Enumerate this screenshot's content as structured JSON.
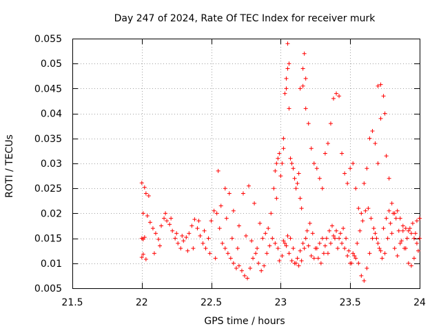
{
  "chart_data": {
    "type": "scatter",
    "title": "Day 247 of 2024, Rate Of TEC Index for receiver murk",
    "xlabel": "GPS time / hours",
    "ylabel": "ROTI / TECUs",
    "xlim": [
      21.5,
      24
    ],
    "ylim": [
      0.005,
      0.055
    ],
    "xticks": [
      21.5,
      22,
      22.5,
      23,
      23.5,
      24
    ],
    "xtick_labels": [
      "21.5",
      "22",
      "22.5",
      "23",
      "23.5",
      "24"
    ],
    "yticks": [
      0.005,
      0.01,
      0.015,
      0.02,
      0.025,
      0.03,
      0.035,
      0.04,
      0.045,
      0.05,
      0.055
    ],
    "ytick_labels": [
      "0.005",
      "0.01",
      "0.015",
      "0.02",
      "0.025",
      "0.03",
      "0.035",
      "0.04",
      "0.045",
      "0.05",
      "0.055"
    ],
    "grid": true,
    "marker": "+",
    "colors": {
      "marker": "#ff0000",
      "grid": "#a0a0a0",
      "axis": "#000000"
    },
    "series": [
      {
        "name": "ROTI",
        "points": [
          [
            22.0,
            0.0261
          ],
          [
            22.02,
            0.0252
          ],
          [
            22.03,
            0.024
          ],
          [
            22.05,
            0.0235
          ],
          [
            22.01,
            0.02
          ],
          [
            22.04,
            0.0195
          ],
          [
            22.0,
            0.015
          ],
          [
            22.01,
            0.0148
          ],
          [
            22.02,
            0.0152
          ],
          [
            22.0,
            0.0112
          ],
          [
            22.01,
            0.0118
          ],
          [
            22.03,
            0.0108
          ],
          [
            22.06,
            0.0182
          ],
          [
            22.08,
            0.017
          ],
          [
            22.1,
            0.016
          ],
          [
            22.12,
            0.0148
          ],
          [
            22.14,
            0.0175
          ],
          [
            22.16,
            0.019
          ],
          [
            22.18,
            0.0185
          ],
          [
            22.2,
            0.0178
          ],
          [
            22.22,
            0.0165
          ],
          [
            22.24,
            0.015
          ],
          [
            22.26,
            0.014
          ],
          [
            22.28,
            0.013
          ],
          [
            22.3,
            0.0145
          ],
          [
            22.32,
            0.0152
          ],
          [
            22.34,
            0.016
          ],
          [
            22.36,
            0.0175
          ],
          [
            22.38,
            0.0188
          ],
          [
            22.4,
            0.017
          ],
          [
            22.42,
            0.0155
          ],
          [
            22.44,
            0.014
          ],
          [
            22.46,
            0.013
          ],
          [
            22.48,
            0.015
          ],
          [
            22.5,
            0.0185
          ],
          [
            22.52,
            0.0205
          ],
          [
            22.54,
            0.02
          ],
          [
            22.56,
            0.017
          ],
          [
            22.58,
            0.014
          ],
          [
            22.6,
            0.013
          ],
          [
            22.62,
            0.012
          ],
          [
            22.64,
            0.011
          ],
          [
            22.66,
            0.01
          ],
          [
            22.68,
            0.009
          ],
          [
            22.7,
            0.0095
          ],
          [
            22.72,
            0.0085
          ],
          [
            22.74,
            0.0075
          ],
          [
            22.76,
            0.007
          ],
          [
            22.78,
            0.009
          ],
          [
            22.8,
            0.011
          ],
          [
            22.82,
            0.012
          ],
          [
            22.84,
            0.01
          ],
          [
            22.86,
            0.0085
          ],
          [
            22.88,
            0.0095
          ],
          [
            22.9,
            0.012
          ],
          [
            22.92,
            0.0135
          ],
          [
            22.94,
            0.015
          ],
          [
            22.96,
            0.014
          ],
          [
            22.98,
            0.013
          ],
          [
            22.09,
            0.012
          ],
          [
            22.13,
            0.0135
          ],
          [
            22.17,
            0.02
          ],
          [
            22.21,
            0.019
          ],
          [
            22.25,
            0.016
          ],
          [
            22.29,
            0.0155
          ],
          [
            22.33,
            0.0125
          ],
          [
            22.37,
            0.013
          ],
          [
            22.41,
            0.0185
          ],
          [
            22.45,
            0.0165
          ],
          [
            22.49,
            0.012
          ],
          [
            22.53,
            0.011
          ],
          [
            22.57,
            0.0215
          ],
          [
            22.61,
            0.019
          ],
          [
            22.65,
            0.015
          ],
          [
            22.69,
            0.013
          ],
          [
            22.73,
            0.024
          ],
          [
            22.77,
            0.0255
          ],
          [
            22.81,
            0.022
          ],
          [
            22.85,
            0.018
          ],
          [
            22.89,
            0.016
          ],
          [
            22.93,
            0.02
          ],
          [
            22.97,
            0.023
          ],
          [
            22.55,
            0.0285
          ],
          [
            22.6,
            0.025
          ],
          [
            22.63,
            0.024
          ],
          [
            22.66,
            0.0205
          ],
          [
            22.7,
            0.0175
          ],
          [
            22.75,
            0.0155
          ],
          [
            22.79,
            0.0145
          ],
          [
            22.83,
            0.013
          ],
          [
            22.87,
            0.015
          ],
          [
            22.91,
            0.017
          ],
          [
            22.95,
            0.025
          ],
          [
            22.96,
            0.0285
          ],
          [
            22.97,
            0.03
          ],
          [
            22.98,
            0.031
          ],
          [
            22.99,
            0.032
          ],
          [
            23.0,
            0.0275
          ],
          [
            23.01,
            0.03
          ],
          [
            23.02,
            0.033
          ],
          [
            23.02,
            0.035
          ],
          [
            23.03,
            0.044
          ],
          [
            23.04,
            0.045
          ],
          [
            23.04,
            0.047
          ],
          [
            23.05,
            0.049
          ],
          [
            23.06,
            0.05
          ],
          [
            23.05,
            0.054
          ],
          [
            23.06,
            0.041
          ],
          [
            23.07,
            0.031
          ],
          [
            23.08,
            0.03
          ],
          [
            23.09,
            0.029
          ],
          [
            23.1,
            0.027
          ],
          [
            23.11,
            0.025
          ],
          [
            23.12,
            0.026
          ],
          [
            23.13,
            0.028
          ],
          [
            23.14,
            0.023
          ],
          [
            23.15,
            0.021
          ],
          [
            23.16,
            0.049
          ],
          [
            23.17,
            0.052
          ],
          [
            23.18,
            0.047
          ],
          [
            23.14,
            0.045
          ],
          [
            23.16,
            0.0455
          ],
          [
            23.18,
            0.041
          ],
          [
            23.2,
            0.038
          ],
          [
            23.22,
            0.033
          ],
          [
            23.24,
            0.03
          ],
          [
            23.26,
            0.029
          ],
          [
            23.28,
            0.027
          ],
          [
            23.3,
            0.025
          ],
          [
            23.32,
            0.032
          ],
          [
            23.34,
            0.034
          ],
          [
            23.36,
            0.038
          ],
          [
            23.38,
            0.043
          ],
          [
            23.4,
            0.044
          ],
          [
            23.42,
            0.0435
          ],
          [
            23.44,
            0.032
          ],
          [
            23.46,
            0.028
          ],
          [
            23.48,
            0.026
          ],
          [
            23.5,
            0.029
          ],
          [
            23.52,
            0.03
          ],
          [
            23.54,
            0.025
          ],
          [
            23.56,
            0.021
          ],
          [
            23.58,
            0.02
          ],
          [
            23.6,
            0.026
          ],
          [
            23.62,
            0.029
          ],
          [
            23.64,
            0.035
          ],
          [
            23.66,
            0.0365
          ],
          [
            23.68,
            0.034
          ],
          [
            23.7,
            0.03
          ],
          [
            23.72,
            0.039
          ],
          [
            23.7,
            0.0455
          ],
          [
            23.72,
            0.0458
          ],
          [
            23.74,
            0.0435
          ],
          [
            23.75,
            0.04
          ],
          [
            23.76,
            0.0315
          ],
          [
            23.78,
            0.027
          ],
          [
            23.8,
            0.022
          ],
          [
            23.82,
            0.02
          ],
          [
            23.84,
            0.0205
          ],
          [
            23.86,
            0.019
          ],
          [
            23.88,
            0.0175
          ],
          [
            23.9,
            0.017
          ],
          [
            23.92,
            0.0165
          ],
          [
            23.94,
            0.016
          ],
          [
            23.96,
            0.015
          ],
          [
            23.98,
            0.0185
          ],
          [
            24.0,
            0.019
          ],
          [
            23.02,
            0.0145
          ],
          [
            23.04,
            0.0135
          ],
          [
            23.06,
            0.012
          ],
          [
            23.08,
            0.0105
          ],
          [
            23.1,
            0.01
          ],
          [
            23.12,
            0.011
          ],
          [
            23.14,
            0.0125
          ],
          [
            23.16,
            0.014
          ],
          [
            23.18,
            0.015
          ],
          [
            23.2,
            0.0135
          ],
          [
            23.22,
            0.0115
          ],
          [
            23.24,
            0.011
          ],
          [
            23.26,
            0.013
          ],
          [
            23.28,
            0.014
          ],
          [
            23.3,
            0.015
          ],
          [
            23.32,
            0.0135
          ],
          [
            23.34,
            0.012
          ],
          [
            23.36,
            0.014
          ],
          [
            23.38,
            0.0155
          ],
          [
            23.4,
            0.0165
          ],
          [
            23.42,
            0.015
          ],
          [
            23.44,
            0.014
          ],
          [
            23.46,
            0.013
          ],
          [
            23.48,
            0.0115
          ],
          [
            23.5,
            0.01
          ],
          [
            23.52,
            0.012
          ],
          [
            23.54,
            0.011
          ],
          [
            23.56,
            0.01
          ],
          [
            23.58,
            0.0075
          ],
          [
            23.6,
            0.0065
          ],
          [
            23.62,
            0.009
          ],
          [
            23.64,
            0.012
          ],
          [
            23.66,
            0.015
          ],
          [
            23.68,
            0.016
          ],
          [
            23.7,
            0.014
          ],
          [
            23.72,
            0.0125
          ],
          [
            23.74,
            0.017
          ],
          [
            23.76,
            0.019
          ],
          [
            23.78,
            0.0205
          ],
          [
            23.8,
            0.016
          ],
          [
            23.82,
            0.013
          ],
          [
            23.84,
            0.0115
          ],
          [
            23.86,
            0.014
          ],
          [
            23.88,
            0.0165
          ],
          [
            23.9,
            0.013
          ],
          [
            23.92,
            0.01
          ],
          [
            23.94,
            0.0095
          ],
          [
            23.96,
            0.011
          ],
          [
            23.98,
            0.014
          ],
          [
            24.0,
            0.015
          ],
          [
            22.99,
            0.0105
          ],
          [
            23.01,
            0.0115
          ],
          [
            23.03,
            0.014
          ],
          [
            23.05,
            0.0155
          ],
          [
            23.07,
            0.015
          ],
          [
            23.09,
            0.013
          ],
          [
            23.11,
            0.01
          ],
          [
            23.13,
            0.0095
          ],
          [
            23.15,
            0.0105
          ],
          [
            23.17,
            0.013
          ],
          [
            23.19,
            0.0165
          ],
          [
            23.21,
            0.018
          ],
          [
            23.23,
            0.016
          ],
          [
            23.25,
            0.013
          ],
          [
            23.27,
            0.011
          ],
          [
            23.29,
            0.01
          ],
          [
            23.31,
            0.012
          ],
          [
            23.33,
            0.015
          ],
          [
            23.35,
            0.0165
          ],
          [
            23.37,
            0.0175
          ],
          [
            23.39,
            0.015
          ],
          [
            23.41,
            0.013
          ],
          [
            23.43,
            0.016
          ],
          [
            23.45,
            0.017
          ],
          [
            23.47,
            0.015
          ],
          [
            23.49,
            0.0125
          ],
          [
            23.51,
            0.01
          ],
          [
            23.53,
            0.0115
          ],
          [
            23.55,
            0.014
          ],
          [
            23.57,
            0.0165
          ],
          [
            23.59,
            0.0185
          ],
          [
            23.61,
            0.0205
          ],
          [
            23.63,
            0.021
          ],
          [
            23.65,
            0.019
          ],
          [
            23.67,
            0.017
          ],
          [
            23.69,
            0.015
          ],
          [
            23.71,
            0.013
          ],
          [
            23.73,
            0.011
          ],
          [
            23.75,
            0.012
          ],
          [
            23.77,
            0.015
          ],
          [
            23.79,
            0.018
          ],
          [
            23.81,
            0.02
          ],
          [
            23.83,
            0.019
          ],
          [
            23.85,
            0.0165
          ],
          [
            23.87,
            0.0145
          ],
          [
            23.89,
            0.013
          ],
          [
            23.91,
            0.015
          ],
          [
            23.93,
            0.017
          ],
          [
            23.95,
            0.018
          ],
          [
            23.97,
            0.016
          ],
          [
            23.99,
            0.0125
          ]
        ]
      }
    ]
  }
}
